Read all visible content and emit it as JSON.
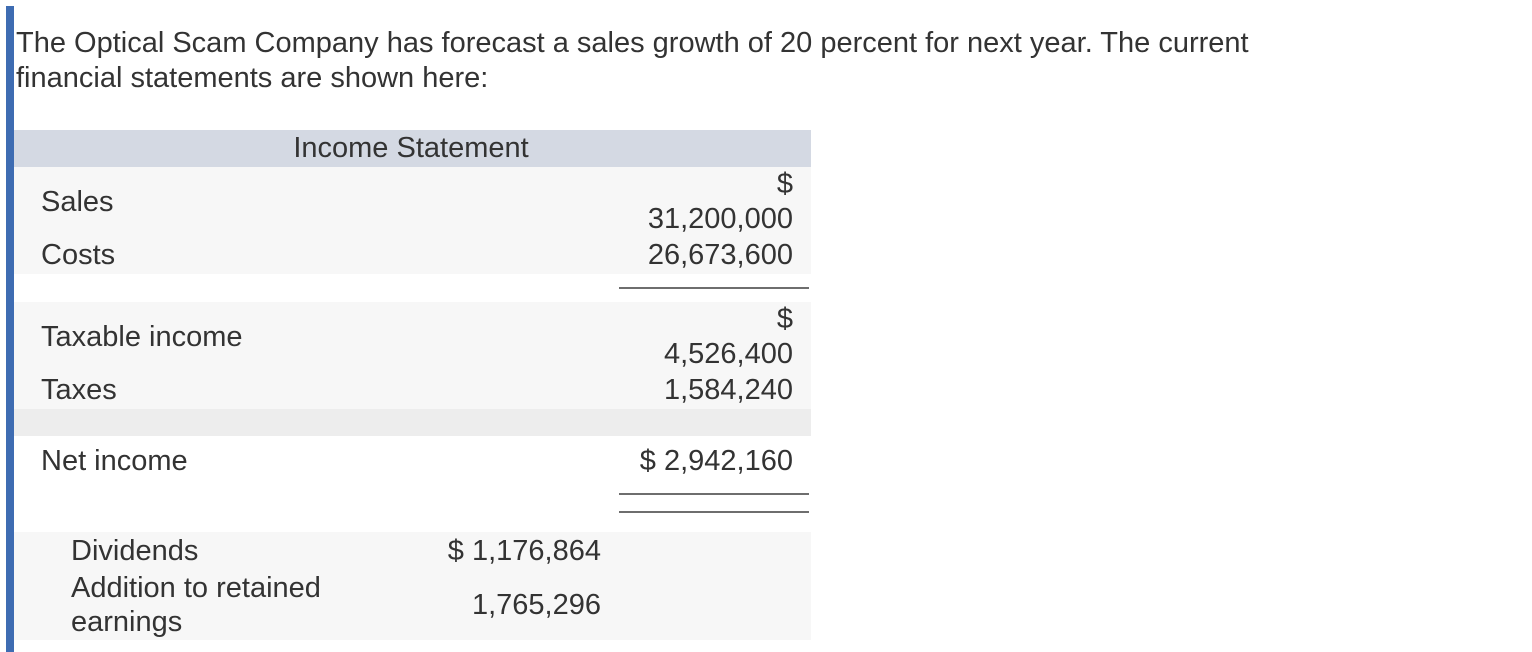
{
  "problem": {
    "text": "The Optical Scam Company has forecast a sales growth of 20 percent for next year. The current financial statements are shown here:"
  },
  "income_statement": {
    "title": "Income Statement",
    "rows": {
      "sales": {
        "label": "Sales",
        "currency": "$",
        "amount": "31,200,000"
      },
      "costs": {
        "label": "Costs",
        "amount": "26,673,600"
      },
      "taxable_income": {
        "label": "Taxable income",
        "currency": "$",
        "amount": "4,526,400"
      },
      "taxes": {
        "label": "Taxes",
        "amount": "1,584,240"
      },
      "net_income": {
        "label": "Net income",
        "amount": "$ 2,942,160"
      },
      "dividends": {
        "label": "Dividends",
        "amount": "$ 1,176,864"
      },
      "addition_to_retained_earnings": {
        "label": "Addition to retained earnings",
        "amount": "1,765,296"
      }
    }
  },
  "colors": {
    "accent_bar": "#3e6cb2",
    "table_header_bg": "#d4d9e3",
    "row_bg": "#f7f7f7",
    "divider_band_bg": "#ededed",
    "rule": "#6e6e6e",
    "text": "#333333"
  }
}
